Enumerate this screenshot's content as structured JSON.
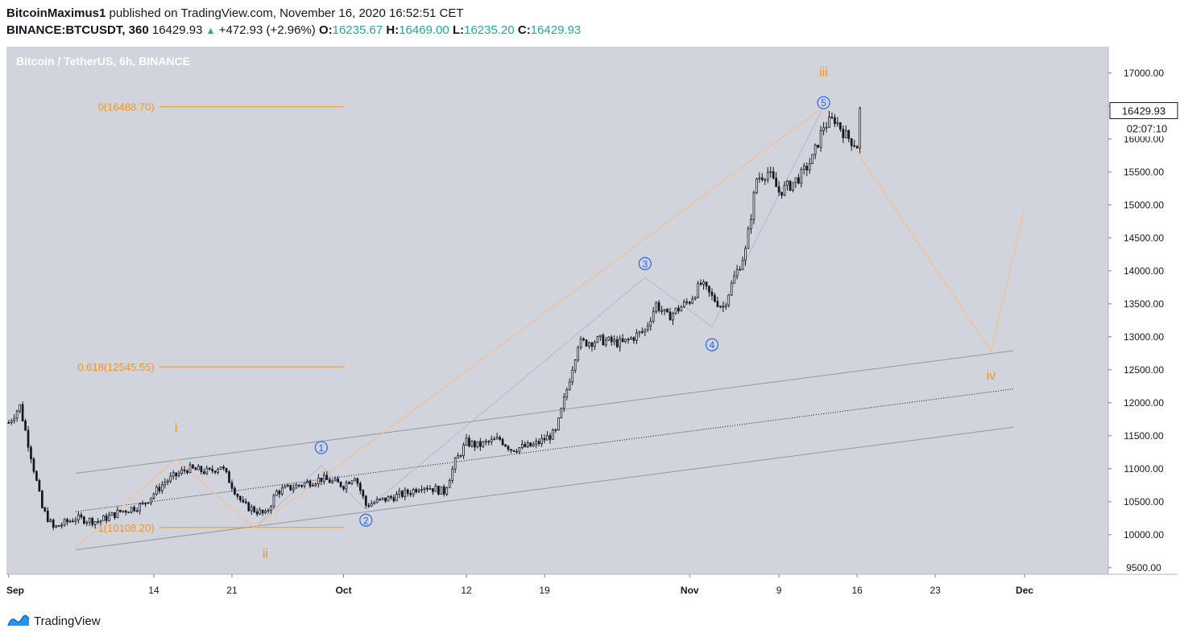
{
  "header": {
    "author": "BitcoinMaximus1",
    "published_text": "published on TradingView.com, November 16, 2020 16:52:51 CET",
    "symbol": "BINANCE:BTCUSDT, 360",
    "last": "16429.93",
    "change": "+472.93 (+2.96%)",
    "o_label": "O:",
    "o": "16235.67",
    "h_label": "H:",
    "h": "16469.00",
    "l_label": "L:",
    "l": "16235.20",
    "c_label": "C:",
    "c": "16429.93"
  },
  "footer": {
    "brand": "TradingView"
  },
  "colors": {
    "plot_bg": "#d1d4dc",
    "orange": "#f7931a",
    "blue": "#2962ff",
    "candle": "#131722",
    "channel": "#9598a1"
  },
  "chart_data": {
    "type": "candlestick",
    "title": "Bitcoin / TetherUS, 6h, BINANCE",
    "currency": "USDT",
    "ylim": [
      9400,
      17400
    ],
    "xlim_days": [
      -0.2,
      98.5
    ],
    "yticks": [
      9500,
      10000,
      10500,
      11000,
      11500,
      12000,
      12500,
      13000,
      13500,
      14000,
      14500,
      15000,
      15500,
      16000,
      16500,
      17000
    ],
    "ytick_labels": [
      "9500.00",
      "10000.00",
      "10500.00",
      "11000.00",
      "11500.00",
      "12000.00",
      "12500.00",
      "13000.00",
      "13500.00",
      "14000.00",
      "14500.00",
      "15000.00",
      "15500.00",
      "16000.00",
      "16500.00",
      "17000.00"
    ],
    "xticks": [
      {
        "label": "Sep",
        "date": "2020-09-01"
      },
      {
        "label": "14",
        "date": "2020-09-14"
      },
      {
        "label": "21",
        "date": "2020-09-21"
      },
      {
        "label": "Oct",
        "date": "2020-10-01"
      },
      {
        "label": "12",
        "date": "2020-10-12"
      },
      {
        "label": "19",
        "date": "2020-10-19"
      },
      {
        "label": "Nov",
        "date": "2020-11-01"
      },
      {
        "label": "9",
        "date": "2020-11-09"
      },
      {
        "label": "16",
        "date": "2020-11-16"
      },
      {
        "label": "23",
        "date": "2020-11-23"
      },
      {
        "label": "Dec",
        "date": "2020-12-01"
      }
    ],
    "price_label": "16429.93",
    "countdown_label": "02:07:10",
    "price_path": [
      {
        "date": "2020-09-01",
        "price": 11700
      },
      {
        "date": "2020-09-02",
        "price": 11950
      },
      {
        "date": "2020-09-03",
        "price": 11200
      },
      {
        "date": "2020-09-04",
        "price": 10400
      },
      {
        "date": "2020-09-05",
        "price": 10100
      },
      {
        "date": "2020-09-07",
        "price": 10250
      },
      {
        "date": "2020-09-09",
        "price": 10200
      },
      {
        "date": "2020-09-11",
        "price": 10350
      },
      {
        "date": "2020-09-13",
        "price": 10450
      },
      {
        "date": "2020-09-15",
        "price": 10800
      },
      {
        "date": "2020-09-17",
        "price": 11000
      },
      {
        "date": "2020-09-19",
        "price": 10950
      },
      {
        "date": "2020-09-20",
        "price": 11050
      },
      {
        "date": "2020-09-22",
        "price": 10450
      },
      {
        "date": "2020-09-24",
        "price": 10300
      },
      {
        "date": "2020-09-25",
        "price": 10650
      },
      {
        "date": "2020-09-27",
        "price": 10750
      },
      {
        "date": "2020-09-29",
        "price": 10850
      },
      {
        "date": "2020-10-01",
        "price": 10750
      },
      {
        "date": "2020-10-02",
        "price": 10900
      },
      {
        "date": "2020-10-03",
        "price": 10450
      },
      {
        "date": "2020-10-05",
        "price": 10550
      },
      {
        "date": "2020-10-07",
        "price": 10650
      },
      {
        "date": "2020-10-08",
        "price": 10750
      },
      {
        "date": "2020-10-10",
        "price": 10650
      },
      {
        "date": "2020-10-11",
        "price": 11100
      },
      {
        "date": "2020-10-12",
        "price": 11400
      },
      {
        "date": "2020-10-13",
        "price": 11350
      },
      {
        "date": "2020-10-15",
        "price": 11450
      },
      {
        "date": "2020-10-16",
        "price": 11300
      },
      {
        "date": "2020-10-18",
        "price": 11350
      },
      {
        "date": "2020-10-20",
        "price": 11550
      },
      {
        "date": "2020-10-21",
        "price": 12200
      },
      {
        "date": "2020-10-22",
        "price": 12900
      },
      {
        "date": "2020-10-24",
        "price": 12950
      },
      {
        "date": "2020-10-26",
        "price": 12900
      },
      {
        "date": "2020-10-28",
        "price": 13100
      },
      {
        "date": "2020-10-29",
        "price": 13500
      },
      {
        "date": "2020-10-30",
        "price": 13300
      },
      {
        "date": "2020-11-01",
        "price": 13550
      },
      {
        "date": "2020-11-02",
        "price": 13800
      },
      {
        "date": "2020-11-03",
        "price": 13600
      },
      {
        "date": "2020-11-04",
        "price": 13450
      },
      {
        "date": "2020-11-05",
        "price": 13900
      },
      {
        "date": "2020-11-06",
        "price": 14300
      },
      {
        "date": "2020-11-07",
        "price": 15400
      },
      {
        "date": "2020-11-08",
        "price": 15500
      },
      {
        "date": "2020-11-09",
        "price": 15200
      },
      {
        "date": "2020-11-10",
        "price": 15300
      },
      {
        "date": "2020-11-11",
        "price": 15450
      },
      {
        "date": "2020-11-12",
        "price": 15700
      },
      {
        "date": "2020-11-13",
        "price": 16200
      },
      {
        "date": "2020-11-14",
        "price": 16300
      },
      {
        "date": "2020-11-15",
        "price": 16050
      },
      {
        "date": "2020-11-16",
        "price": 15900
      },
      {
        "date": "2020-11-16",
        "price": 16430
      }
    ],
    "fib_levels": [
      {
        "label": "0(16488.70)",
        "value": 16488.7
      },
      {
        "label": "0.618(12545.55)",
        "value": 12545.55
      },
      {
        "label": "1(10108.20)",
        "value": 10108.2
      }
    ],
    "channel_lines": [
      {
        "style": "solid",
        "points": [
          {
            "date": "2020-09-07",
            "price": 10930
          },
          {
            "date": "2020-11-30",
            "price": 12790
          }
        ]
      },
      {
        "style": "dotted",
        "points": [
          {
            "date": "2020-09-07",
            "price": 10350
          },
          {
            "date": "2020-11-30",
            "price": 12210
          }
        ]
      },
      {
        "style": "solid",
        "points": [
          {
            "date": "2020-09-07",
            "price": 9770
          },
          {
            "date": "2020-11-30",
            "price": 11630
          }
        ]
      }
    ],
    "wave_major_path": [
      {
        "date": "2020-09-07",
        "price": 9800
      },
      {
        "date": "2020-09-16",
        "price": 11150
      },
      {
        "date": "2020-09-23",
        "price": 10100
      },
      {
        "date": "2020-11-13",
        "price": 16490
      },
      {
        "date": "2020-11-16",
        "price": 15800
      },
      {
        "date": "2020-11-28",
        "price": 12780
      },
      {
        "date": "2020-12-01",
        "price": 14950
      }
    ],
    "wave_minor_path": [
      {
        "date": "2020-09-23",
        "price": 10100
      },
      {
        "date": "2020-09-29",
        "price": 11050
      },
      {
        "date": "2020-10-03",
        "price": 10380
      },
      {
        "date": "2020-10-28",
        "price": 13900
      },
      {
        "date": "2020-11-03",
        "price": 13150
      },
      {
        "date": "2020-11-13",
        "price": 16490
      }
    ],
    "major_labels": [
      {
        "text": "i",
        "date": "2020-09-16",
        "price": 11550
      },
      {
        "text": "ii",
        "date": "2020-09-24",
        "price": 9650
      },
      {
        "text": "iii",
        "date": "2020-11-13",
        "price": 16950
      },
      {
        "text": "iv",
        "date": "2020-11-28",
        "price": 12350
      }
    ],
    "minor_labels": [
      {
        "text": "1",
        "date": "2020-09-29",
        "price": 11320
      },
      {
        "text": "2",
        "date": "2020-10-03",
        "price": 10220
      },
      {
        "text": "3",
        "date": "2020-10-28",
        "price": 14110
      },
      {
        "text": "4",
        "date": "2020-11-03",
        "price": 12880
      },
      {
        "text": "5",
        "date": "2020-11-13",
        "price": 16550
      }
    ]
  }
}
